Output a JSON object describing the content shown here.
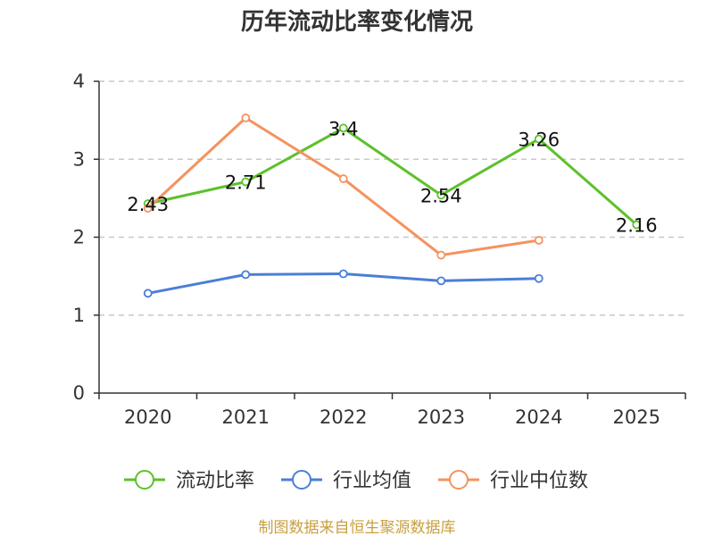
{
  "chart_data": {
    "type": "line",
    "title": "历年流动比率变化情况",
    "categories": [
      "2020",
      "2021",
      "2022",
      "2023",
      "2024",
      "2025"
    ],
    "ylim": [
      0,
      4
    ],
    "yticks": [
      "0",
      "1",
      "2",
      "3",
      "4"
    ],
    "grid": true,
    "legend_position": "bottom",
    "series": [
      {
        "name": "流动比率",
        "color": "#5cc12b",
        "values": [
          2.43,
          2.71,
          3.4,
          2.54,
          3.26,
          2.16
        ],
        "labels": [
          "2.43",
          "2.71",
          "3.4",
          "2.54",
          "3.26",
          "2.16"
        ]
      },
      {
        "name": "行业均值",
        "color": "#4a7fd6",
        "values": [
          1.28,
          1.52,
          1.53,
          1.44,
          1.47,
          null
        ],
        "labels": []
      },
      {
        "name": "行业中位数",
        "color": "#f5925e",
        "values": [
          2.37,
          3.53,
          2.75,
          1.77,
          1.96,
          null
        ],
        "labels": []
      }
    ]
  },
  "source": "制图数据来自恒生聚源数据库"
}
